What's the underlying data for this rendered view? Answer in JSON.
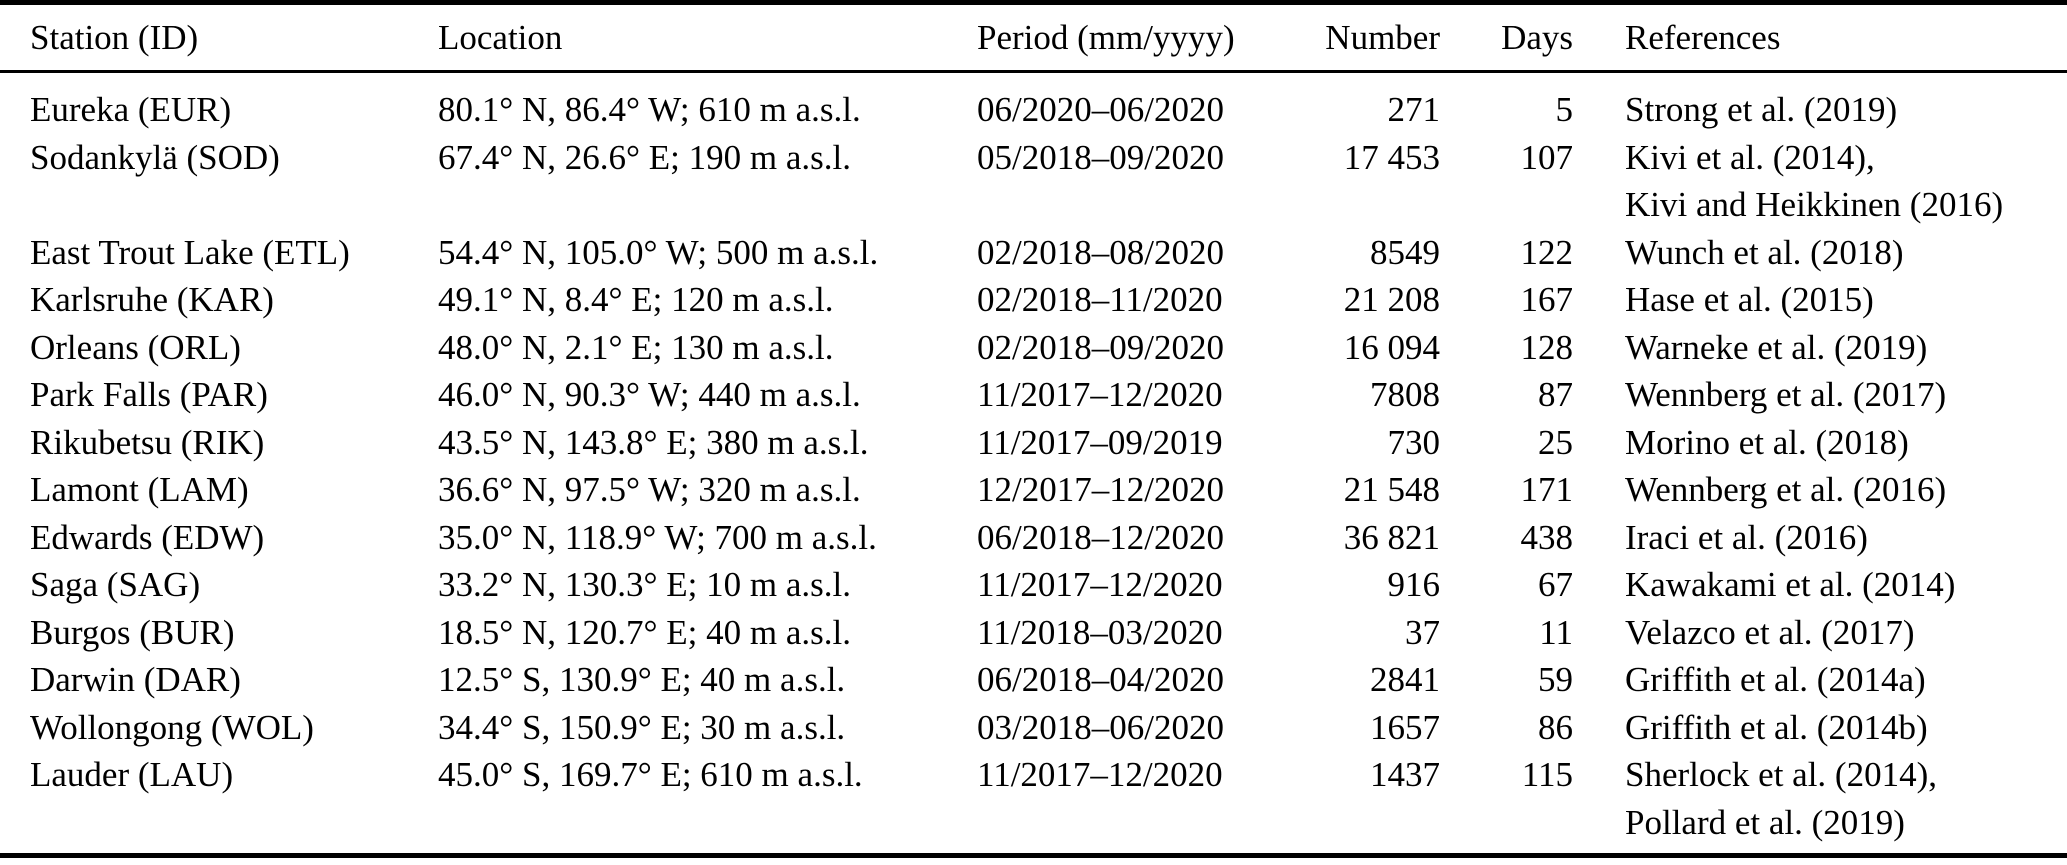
{
  "table": {
    "columns": [
      {
        "key": "station",
        "label": "Station (ID)"
      },
      {
        "key": "location",
        "label": "Location"
      },
      {
        "key": "period",
        "label": "Period (mm/yyyy)"
      },
      {
        "key": "number",
        "label": "Number"
      },
      {
        "key": "days",
        "label": "Days"
      },
      {
        "key": "references",
        "label": "References"
      }
    ],
    "rows": [
      {
        "station": "Eureka (EUR)",
        "location": "80.1° N, 86.4° W; 610 m a.s.l.",
        "period": "06/2020–06/2020",
        "number": "271",
        "days": "5",
        "references": [
          "Strong et al. (2019)"
        ]
      },
      {
        "station": "Sodankylä (SOD)",
        "location": "67.4° N, 26.6° E; 190 m a.s.l.",
        "period": "05/2018–09/2020",
        "number": "17 453",
        "days": "107",
        "references": [
          "Kivi et al. (2014),",
          "Kivi and Heikkinen (2016)"
        ]
      },
      {
        "station": "East Trout Lake (ETL)",
        "location": "54.4° N, 105.0° W; 500 m a.s.l.",
        "period": "02/2018–08/2020",
        "number": "8549",
        "days": "122",
        "references": [
          "Wunch et al. (2018)"
        ]
      },
      {
        "station": "Karlsruhe (KAR)",
        "location": "49.1° N, 8.4° E; 120 m a.s.l.",
        "period": "02/2018–11/2020",
        "number": "21 208",
        "days": "167",
        "references": [
          "Hase et al. (2015)"
        ]
      },
      {
        "station": "Orleans (ORL)",
        "location": "48.0° N, 2.1° E; 130 m a.s.l.",
        "period": "02/2018–09/2020",
        "number": "16 094",
        "days": "128",
        "references": [
          "Warneke et al. (2019)"
        ]
      },
      {
        "station": "Park Falls (PAR)",
        "location": "46.0° N, 90.3° W; 440 m a.s.l.",
        "period": "11/2017–12/2020",
        "number": "7808",
        "days": "87",
        "references": [
          "Wennberg et al. (2017)"
        ]
      },
      {
        "station": "Rikubetsu (RIK)",
        "location": "43.5° N, 143.8° E; 380 m a.s.l.",
        "period": "11/2017–09/2019",
        "number": "730",
        "days": "25",
        "references": [
          "Morino et al. (2018)"
        ]
      },
      {
        "station": "Lamont (LAM)",
        "location": "36.6° N, 97.5° W; 320 m a.s.l.",
        "period": "12/2017–12/2020",
        "number": "21 548",
        "days": "171",
        "references": [
          "Wennberg et al. (2016)"
        ]
      },
      {
        "station": "Edwards (EDW)",
        "location": "35.0° N, 118.9° W; 700 m a.s.l.",
        "period": "06/2018–12/2020",
        "number": "36 821",
        "days": "438",
        "references": [
          "Iraci et al. (2016)"
        ]
      },
      {
        "station": "Saga (SAG)",
        "location": "33.2° N, 130.3° E; 10 m a.s.l.",
        "period": "11/2017–12/2020",
        "number": "916",
        "days": "67",
        "references": [
          "Kawakami et al. (2014)"
        ]
      },
      {
        "station": "Burgos (BUR)",
        "location": "18.5° N, 120.7° E; 40 m a.s.l.",
        "period": "11/2018–03/2020",
        "number": "37",
        "days": "11",
        "references": [
          "Velazco et al. (2017)"
        ]
      },
      {
        "station": "Darwin (DAR)",
        "location": "12.5° S, 130.9° E; 40 m a.s.l.",
        "period": "06/2018–04/2020",
        "number": "2841",
        "days": "59",
        "references": [
          "Griffith et al. (2014a)"
        ]
      },
      {
        "station": "Wollongong (WOL)",
        "location": "34.4° S, 150.9° E; 30 m a.s.l.",
        "period": "03/2018–06/2020",
        "number": "1657",
        "days": "86",
        "references": [
          "Griffith et al. (2014b)"
        ]
      },
      {
        "station": "Lauder (LAU)",
        "location": "45.0° S, 169.7° E; 610 m a.s.l.",
        "period": "11/2017–12/2020",
        "number": "1437",
        "days": "115",
        "references": [
          "Sherlock et al. (2014),",
          "Pollard et al. (2019)"
        ]
      }
    ]
  },
  "colors": {
    "text": "#000000",
    "background": "#ffffff",
    "rule": "#000000"
  }
}
